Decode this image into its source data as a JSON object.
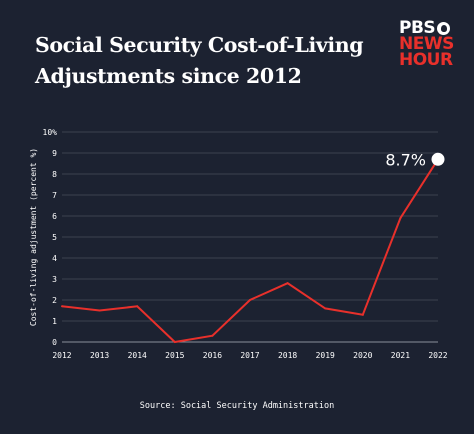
{
  "header": {
    "title_line1": "Social Security Cost-of-Living",
    "title_line2": "Adjustments since 2012"
  },
  "logo": {
    "line1": "PBS",
    "line2": "NEWS",
    "line3": "HOUR"
  },
  "colors": {
    "background": "#1c2231",
    "line": "#e8302b",
    "grid": "#5a6170",
    "text": "#ffffff"
  },
  "source": "Source: Social Security Administration",
  "chart_data": {
    "type": "line",
    "title": "Social Security Cost-of-Living Adjustments since 2012",
    "xlabel": "",
    "ylabel": "Cost-of-living adjustment (percent %)",
    "x": [
      2012,
      2013,
      2014,
      2015,
      2016,
      2017,
      2018,
      2019,
      2020,
      2021,
      2022
    ],
    "y": [
      1.7,
      1.5,
      1.7,
      0.0,
      0.3,
      2.0,
      2.8,
      1.6,
      1.3,
      5.9,
      8.7
    ],
    "ylim": [
      0,
      10
    ],
    "yticks": [
      0,
      1,
      2,
      3,
      4,
      5,
      6,
      7,
      8,
      9,
      10
    ],
    "ytick_labels": [
      "0",
      "1",
      "2",
      "3",
      "4",
      "5",
      "6",
      "7",
      "8",
      "9",
      "10%"
    ],
    "xtick_labels": [
      "2012",
      "2013",
      "2014",
      "2015",
      "2016",
      "2017",
      "2018",
      "2019",
      "2020",
      "2021",
      "2022"
    ],
    "grid": true,
    "annotation": {
      "x": 2022,
      "y": 8.7,
      "label": "8.7%"
    }
  }
}
